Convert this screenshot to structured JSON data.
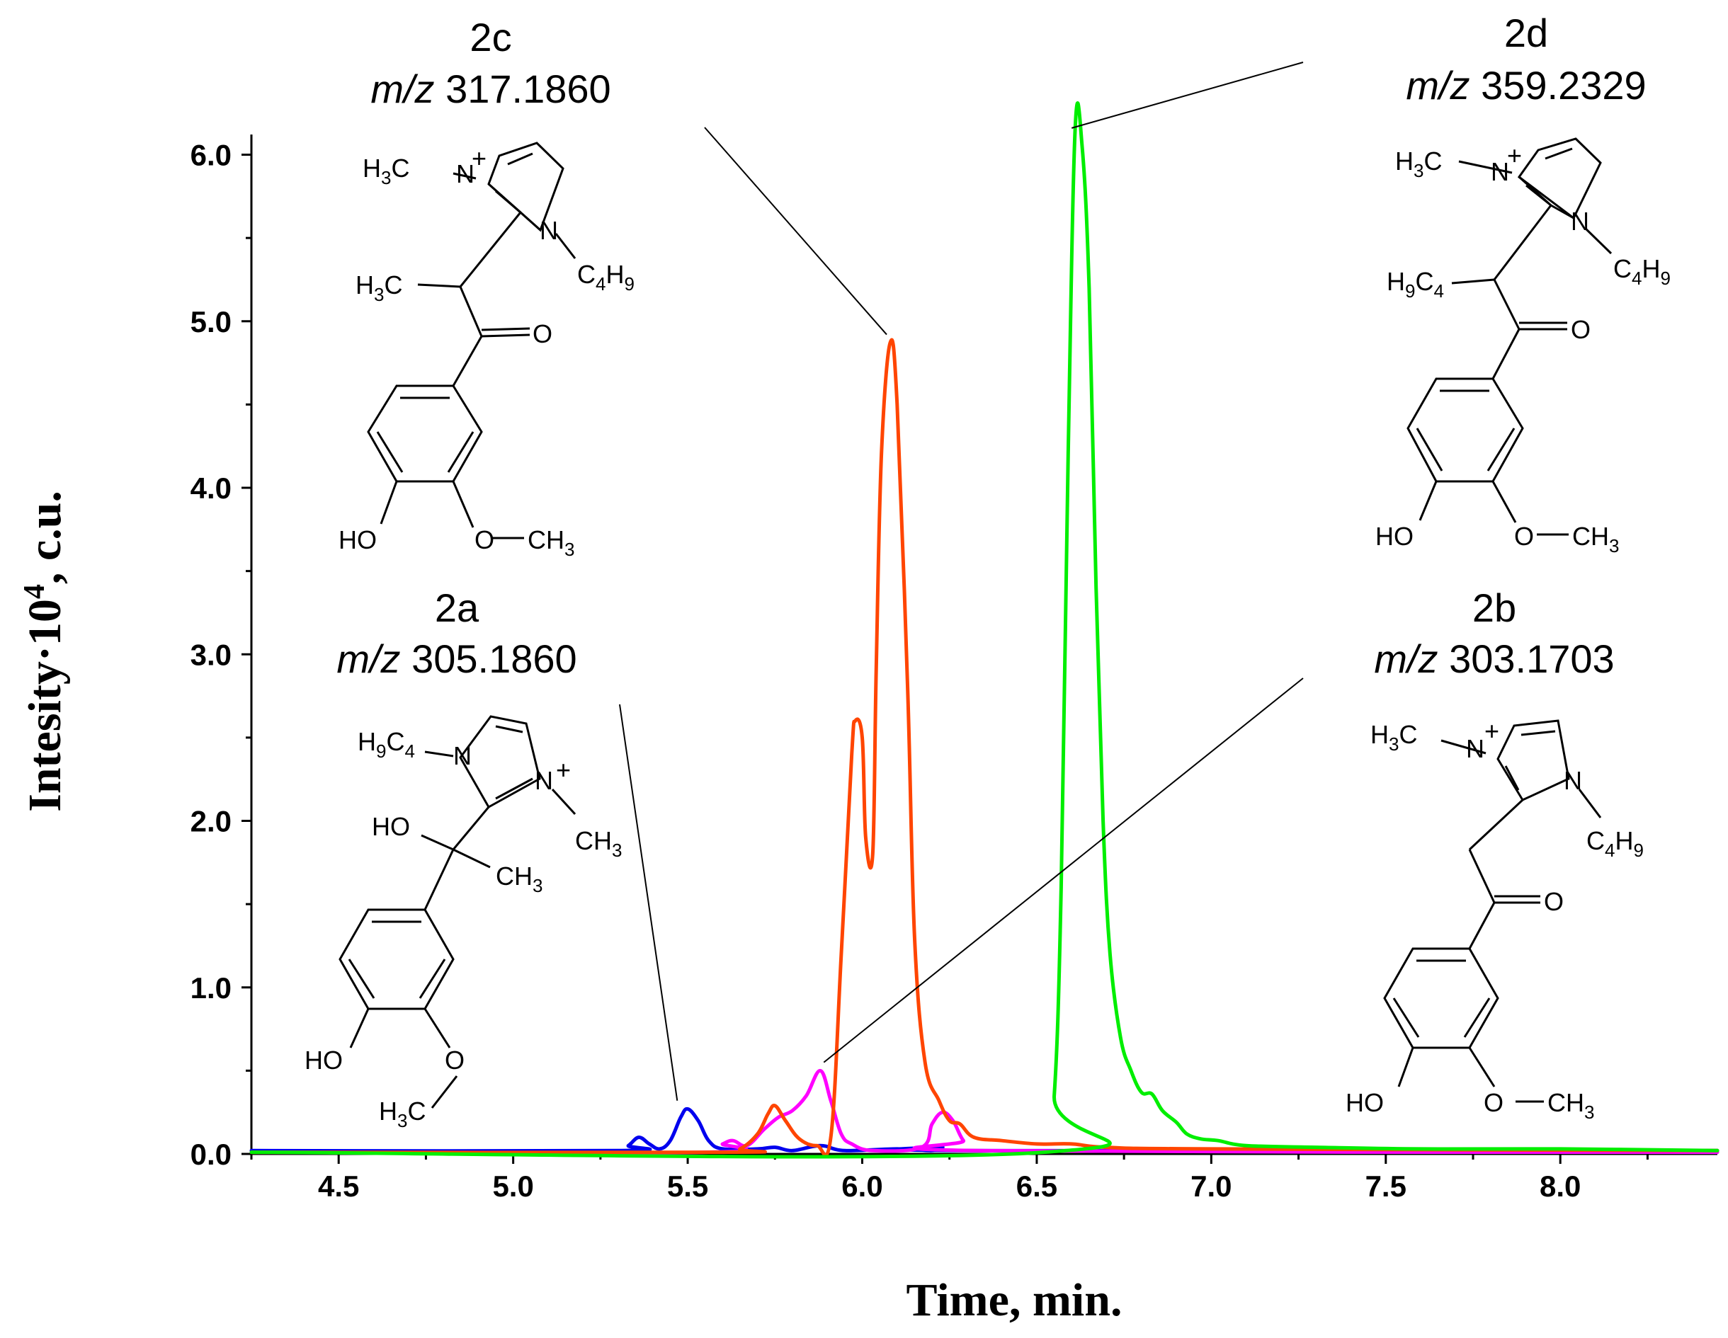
{
  "chart_data": {
    "type": "line",
    "xlabel": "Time, min.",
    "ylabel_prefix": "Intesity·10",
    "ylabel_exp": "4",
    "ylabel_suffix": ", c.u.",
    "xlim": [
      4.25,
      8.45
    ],
    "ylim": [
      0,
      6.1
    ],
    "x_ticks": [
      4.5,
      5.0,
      5.5,
      6.0,
      6.5,
      7.0,
      7.5,
      8.0
    ],
    "x_tick_labels": [
      "4.5",
      "5.0",
      "5.5",
      "6.0",
      "6.5",
      "7.0",
      "7.5",
      "8.0"
    ],
    "y_ticks": [
      0.0,
      1.0,
      2.0,
      3.0,
      4.0,
      5.0,
      6.0
    ],
    "y_tick_labels": [
      "0.0",
      "1.0",
      "2.0",
      "3.0",
      "4.0",
      "5.0",
      "6.0"
    ],
    "series": [
      {
        "name": "2a (m/z 305.1860)",
        "color": "#0000ee",
        "points": [
          [
            4.25,
            0.02
          ],
          [
            5.3,
            0.02
          ],
          [
            5.33,
            0.05
          ],
          [
            5.36,
            0.1
          ],
          [
            5.39,
            0.06
          ],
          [
            5.42,
            0.03
          ],
          [
            5.45,
            0.08
          ],
          [
            5.48,
            0.22
          ],
          [
            5.5,
            0.27
          ],
          [
            5.53,
            0.2
          ],
          [
            5.56,
            0.08
          ],
          [
            5.6,
            0.03
          ],
          [
            5.7,
            0.03
          ],
          [
            5.75,
            0.04
          ],
          [
            5.8,
            0.02
          ],
          [
            5.88,
            0.05
          ],
          [
            5.95,
            0.02
          ],
          [
            6.1,
            0.03
          ],
          [
            6.2,
            0.02
          ],
          [
            6.23,
            0.04
          ],
          [
            6.3,
            0.02
          ],
          [
            8.45,
            0.02
          ]
        ]
      },
      {
        "name": "2b (m/z 303.1703)",
        "color": "#ff00ff",
        "points": [
          [
            4.25,
            0.01
          ],
          [
            5.55,
            0.01
          ],
          [
            5.6,
            0.06
          ],
          [
            5.63,
            0.08
          ],
          [
            5.67,
            0.05
          ],
          [
            5.72,
            0.15
          ],
          [
            5.76,
            0.22
          ],
          [
            5.8,
            0.26
          ],
          [
            5.84,
            0.35
          ],
          [
            5.88,
            0.5
          ],
          [
            5.91,
            0.32
          ],
          [
            5.94,
            0.12
          ],
          [
            5.97,
            0.06
          ],
          [
            6.03,
            0.02
          ],
          [
            6.17,
            0.04
          ],
          [
            6.2,
            0.18
          ],
          [
            6.23,
            0.25
          ],
          [
            6.26,
            0.2
          ],
          [
            6.29,
            0.08
          ],
          [
            6.33,
            0.02
          ],
          [
            8.45,
            0.01
          ]
        ]
      },
      {
        "name": "2c (m/z 317.1860)",
        "color": "#ff4500",
        "points": [
          [
            4.25,
            0.01
          ],
          [
            5.6,
            0.01
          ],
          [
            5.65,
            0.03
          ],
          [
            5.7,
            0.12
          ],
          [
            5.73,
            0.24
          ],
          [
            5.75,
            0.29
          ],
          [
            5.78,
            0.2
          ],
          [
            5.82,
            0.09
          ],
          [
            5.87,
            0.05
          ],
          [
            5.91,
            0.1
          ],
          [
            5.94,
            1.2
          ],
          [
            5.97,
            2.4
          ],
          [
            5.98,
            2.6
          ],
          [
            6.0,
            2.5
          ],
          [
            6.01,
            1.9
          ],
          [
            6.03,
            1.8
          ],
          [
            6.04,
            2.9
          ],
          [
            6.055,
            4.2
          ],
          [
            6.08,
            4.87
          ],
          [
            6.1,
            4.5
          ],
          [
            6.13,
            2.8
          ],
          [
            6.15,
            1.3
          ],
          [
            6.18,
            0.55
          ],
          [
            6.22,
            0.32
          ],
          [
            6.25,
            0.2
          ],
          [
            6.28,
            0.18
          ],
          [
            6.32,
            0.1
          ],
          [
            6.4,
            0.08
          ],
          [
            6.5,
            0.06
          ],
          [
            6.6,
            0.06
          ],
          [
            6.7,
            0.04
          ],
          [
            7.0,
            0.03
          ],
          [
            8.45,
            0.02
          ]
        ]
      },
      {
        "name": "2d (m/z 359.2329)",
        "color": "#00ee00",
        "points": [
          [
            4.25,
            0.01
          ],
          [
            6.52,
            0.01
          ],
          [
            6.55,
            0.35
          ],
          [
            6.57,
            1.6
          ],
          [
            6.59,
            4.2
          ],
          [
            6.61,
            6.15
          ],
          [
            6.63,
            6.05
          ],
          [
            6.65,
            5.2
          ],
          [
            6.67,
            3.4
          ],
          [
            6.69,
            2.0
          ],
          [
            6.71,
            1.2
          ],
          [
            6.74,
            0.7
          ],
          [
            6.77,
            0.5
          ],
          [
            6.8,
            0.37
          ],
          [
            6.83,
            0.36
          ],
          [
            6.86,
            0.26
          ],
          [
            6.9,
            0.19
          ],
          [
            6.93,
            0.12
          ],
          [
            6.97,
            0.09
          ],
          [
            7.02,
            0.08
          ],
          [
            7.1,
            0.05
          ],
          [
            7.3,
            0.04
          ],
          [
            7.6,
            0.03
          ],
          [
            8.0,
            0.03
          ],
          [
            8.45,
            0.02
          ]
        ]
      }
    ]
  },
  "compounds": [
    {
      "id": "2a",
      "label": "2a",
      "mz_italic": "m/z",
      "mz_value": " 305.1860"
    },
    {
      "id": "2b",
      "label": "2b",
      "mz_italic": "m/z",
      "mz_value": " 303.1703"
    },
    {
      "id": "2c",
      "label": "2c",
      "mz_italic": "m/z",
      "mz_value": " 317.1860"
    },
    {
      "id": "2d",
      "label": "2d",
      "mz_italic": "m/z",
      "mz_value": " 359.2329"
    }
  ],
  "atoms": {
    "H3C": "H3C",
    "H9C4": "H9C4",
    "C4H9": "C4H9",
    "CH3": "CH3",
    "N": "N",
    "plus": "+",
    "O": "O",
    "HO": "HO",
    "O_CH3": "O—CH3",
    "O_bare": "O"
  }
}
